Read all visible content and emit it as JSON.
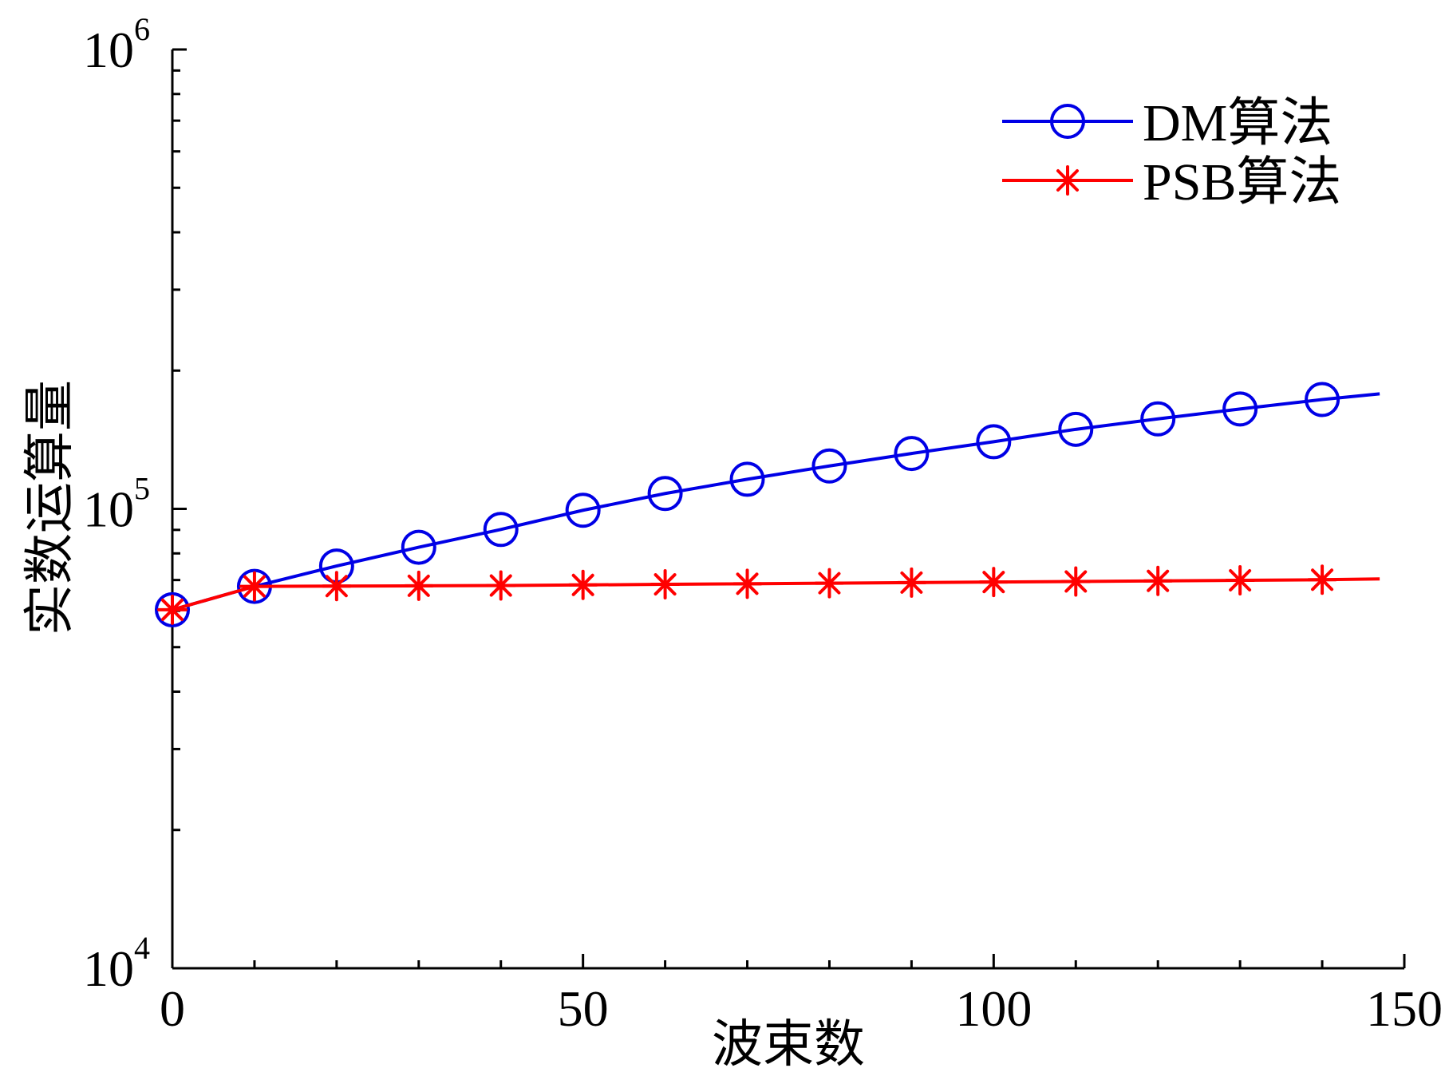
{
  "chart_data": {
    "type": "line",
    "xlabel": "波束数",
    "ylabel": "实数运算量",
    "xlim": [
      0,
      150
    ],
    "ylim": [
      10000,
      1000000
    ],
    "yscale": "log",
    "grid": false,
    "legend_position": "top-right",
    "x_ticks": [
      "0",
      "50",
      "100",
      "150"
    ],
    "y_ticks": [
      {
        "base": "10",
        "exp": "4",
        "value": 10000
      },
      {
        "base": "10",
        "exp": "5",
        "value": 100000
      },
      {
        "base": "10",
        "exp": "6",
        "value": 1000000
      }
    ],
    "series": [
      {
        "name": "DM算法",
        "color": "#0000e6",
        "marker": "circle",
        "x": [
          0,
          10,
          20,
          30,
          40,
          50,
          60,
          70,
          80,
          90,
          100,
          110,
          120,
          130,
          140
        ],
        "y": [
          60300,
          67800,
          75100,
          82500,
          90200,
          99300,
          108000,
          116000,
          124000,
          132000,
          140000,
          149000,
          157000,
          165000,
          173000
        ],
        "line_end": {
          "x": 147,
          "y": 178000
        }
      },
      {
        "name": "PSB算法",
        "color": "#ff0000",
        "marker": "asterisk",
        "x": [
          0,
          10,
          20,
          30,
          40,
          50,
          60,
          70,
          80,
          90,
          100,
          110,
          120,
          130,
          140
        ],
        "y": [
          60300,
          67800,
          67900,
          68000,
          68100,
          68300,
          68500,
          68700,
          68900,
          69100,
          69300,
          69500,
          69700,
          69900,
          70100
        ],
        "line_end": {
          "x": 147,
          "y": 70400
        }
      }
    ]
  }
}
